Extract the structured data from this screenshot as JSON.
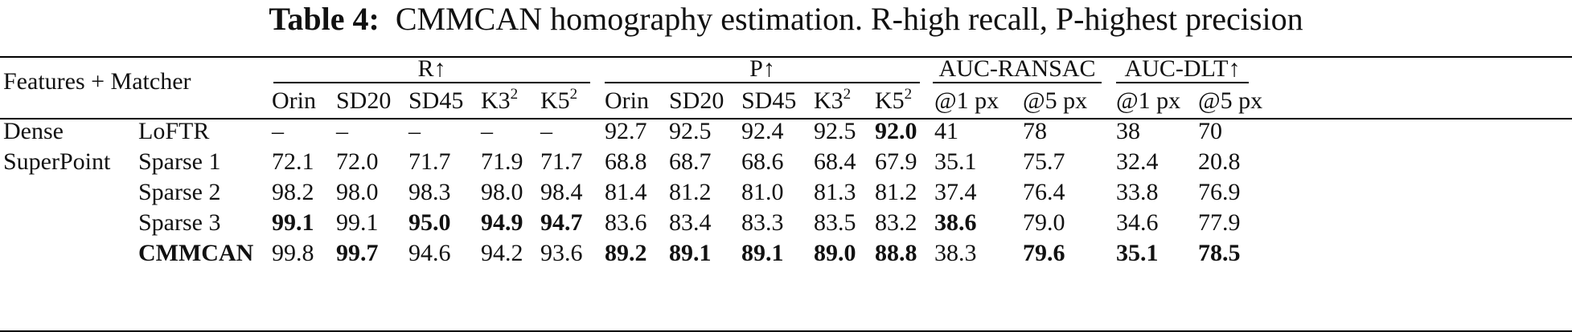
{
  "caption": {
    "label": "Table 4:",
    "text": "CMMCAN homography estimation. R-high recall, P-highest precision"
  },
  "header": {
    "features_matcher": "Features + Matcher",
    "groups": [
      "R↑",
      "P↑",
      "AUC-RANSAC",
      "AUC-DLT↑"
    ],
    "subcolumns": [
      {
        "text": "Orin",
        "sup": ""
      },
      {
        "text": "SD20",
        "sup": ""
      },
      {
        "text": "SD45",
        "sup": ""
      },
      {
        "text": "K3",
        "sup": "2"
      },
      {
        "text": "K5",
        "sup": "2"
      },
      {
        "text": "Orin",
        "sup": ""
      },
      {
        "text": "SD20",
        "sup": ""
      },
      {
        "text": "SD45",
        "sup": ""
      },
      {
        "text": "K3",
        "sup": "2"
      },
      {
        "text": "K5",
        "sup": "2"
      },
      {
        "text": "@1 px",
        "sup": ""
      },
      {
        "text": "@5 px",
        "sup": ""
      },
      {
        "text": "@1 px",
        "sup": ""
      },
      {
        "text": "@5 px",
        "sup": ""
      }
    ]
  },
  "rows": [
    {
      "feature": "Dense",
      "matcher": "LoFTR",
      "matcher_bold": false,
      "values": [
        "–",
        "–",
        "–",
        "–",
        "–",
        "92.7",
        "92.5",
        "92.4",
        "92.5",
        "92.0",
        "41",
        "78",
        "38",
        "70"
      ],
      "bold": [
        false,
        false,
        false,
        false,
        false,
        false,
        false,
        false,
        false,
        true,
        false,
        false,
        false,
        false
      ]
    },
    {
      "feature": "SuperPoint",
      "matcher": "Sparse 1",
      "matcher_bold": false,
      "values": [
        "72.1",
        "72.0",
        "71.7",
        "71.9",
        "71.7",
        "68.8",
        "68.7",
        "68.6",
        "68.4",
        "67.9",
        "35.1",
        "75.7",
        "32.4",
        "20.8"
      ],
      "bold": [
        false,
        false,
        false,
        false,
        false,
        false,
        false,
        false,
        false,
        false,
        false,
        false,
        false,
        false
      ]
    },
    {
      "feature": "",
      "matcher": "Sparse 2",
      "matcher_bold": false,
      "values": [
        "98.2",
        "98.0",
        "98.3",
        "98.0",
        "98.4",
        "81.4",
        "81.2",
        "81.0",
        "81.3",
        "81.2",
        "37.4",
        "76.4",
        "33.8",
        "76.9"
      ],
      "bold": [
        false,
        false,
        false,
        false,
        false,
        false,
        false,
        false,
        false,
        false,
        false,
        false,
        false,
        false
      ]
    },
    {
      "feature": "",
      "matcher": "Sparse 3",
      "matcher_bold": false,
      "values": [
        "99.1",
        "99.1",
        "95.0",
        "94.9",
        "94.7",
        "83.6",
        "83.4",
        "83.3",
        "83.5",
        "83.2",
        "38.6",
        "79.0",
        "34.6",
        "77.9"
      ],
      "bold": [
        true,
        false,
        true,
        true,
        true,
        false,
        false,
        false,
        false,
        false,
        true,
        false,
        false,
        false
      ]
    },
    {
      "feature": "",
      "matcher": "CMMCAN",
      "matcher_bold": true,
      "values": [
        "99.8",
        "99.7",
        "94.6",
        "94.2",
        "93.6",
        "89.2",
        "89.1",
        "89.1",
        "89.0",
        "88.8",
        "38.3",
        "79.6",
        "35.1",
        "78.5"
      ],
      "bold": [
        false,
        true,
        false,
        false,
        false,
        true,
        true,
        true,
        true,
        true,
        false,
        true,
        true,
        true
      ]
    }
  ]
}
